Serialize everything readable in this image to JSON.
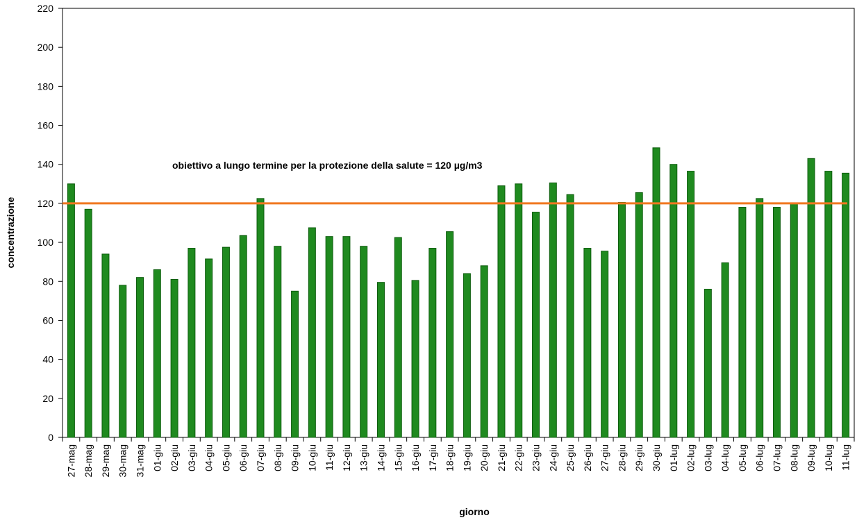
{
  "chart_data": {
    "type": "bar",
    "x_label": "giorno",
    "y_label": "concentrazione",
    "categories": [
      "27-mag",
      "28-mag",
      "29-mag",
      "30-mag",
      "31-mag",
      "01-giu",
      "02-giu",
      "03-giu",
      "04-giu",
      "05-giu",
      "06-giu",
      "07-giu",
      "08-giu",
      "09-giu",
      "10-giu",
      "11-giu",
      "12-giu",
      "13-giu",
      "14-giu",
      "15-giu",
      "16-giu",
      "17-giu",
      "18-giu",
      "19-giu",
      "20-giu",
      "21-giu",
      "22-giu",
      "23-giu",
      "24-giu",
      "25-giu",
      "26-giu",
      "27-giu",
      "28-giu",
      "29-giu",
      "30-giu",
      "01-lug",
      "02-lug",
      "03-lug",
      "04-lug",
      "05-lug",
      "06-lug",
      "07-lug",
      "08-lug",
      "09-lug",
      "10-lug",
      "11-lug"
    ],
    "values": [
      130,
      117,
      94,
      78,
      82,
      86,
      81,
      97,
      91.5,
      97.5,
      103.5,
      122.5,
      98,
      75,
      107.5,
      103,
      103,
      98,
      79.5,
      102.5,
      80.5,
      97,
      105.5,
      84,
      88,
      129,
      130,
      115.5,
      130.5,
      124.5,
      97,
      95.5,
      120.5,
      125.5,
      148.5,
      140,
      136.5,
      76,
      89.5,
      118,
      122.5,
      118,
      120,
      143,
      136.5,
      135.5
    ],
    "color": "#1f8a1f",
    "reference_line": {
      "value": 120,
      "label": "obiettivo a lungo termine per la protezione della salute = 120 µg/m3",
      "color": "#f07820"
    },
    "ylim": [
      0,
      220
    ],
    "yticks": [
      0,
      20,
      40,
      60,
      80,
      100,
      120,
      140,
      160,
      180,
      200,
      220
    ],
    "grid": false
  }
}
